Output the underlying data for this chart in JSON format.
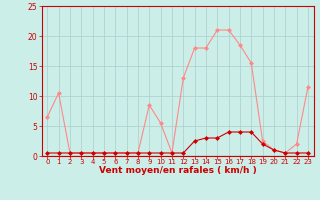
{
  "x": [
    0,
    1,
    2,
    3,
    4,
    5,
    6,
    7,
    8,
    9,
    10,
    11,
    12,
    13,
    14,
    15,
    16,
    17,
    18,
    19,
    20,
    21,
    22,
    23
  ],
  "y_rafales": [
    6.5,
    10.5,
    0.5,
    0.5,
    0.5,
    0.5,
    0.5,
    0.5,
    0.5,
    8.5,
    5.5,
    0.5,
    13.0,
    18.0,
    18.0,
    21.0,
    21.0,
    18.5,
    15.5,
    2.5,
    1.0,
    0.5,
    2.0,
    11.5
  ],
  "y_moyen": [
    0.5,
    0.5,
    0.5,
    0.5,
    0.5,
    0.5,
    0.5,
    0.5,
    0.5,
    0.5,
    0.5,
    0.5,
    0.5,
    2.5,
    3.0,
    3.0,
    4.0,
    4.0,
    4.0,
    2.0,
    1.0,
    0.5,
    0.5,
    0.5
  ],
  "color_rafales": "#ff8888",
  "color_moyen": "#cc0000",
  "xlabel": "Vent moyen/en rafales ( km/h )",
  "ylim": [
    0,
    25
  ],
  "xlim": [
    -0.5,
    23.5
  ],
  "yticks": [
    0,
    5,
    10,
    15,
    20,
    25
  ],
  "xticks": [
    0,
    1,
    2,
    3,
    4,
    5,
    6,
    7,
    8,
    9,
    10,
    11,
    12,
    13,
    14,
    15,
    16,
    17,
    18,
    19,
    20,
    21,
    22,
    23
  ],
  "bg_color": "#cceee8",
  "grid_color": "#aacccc"
}
